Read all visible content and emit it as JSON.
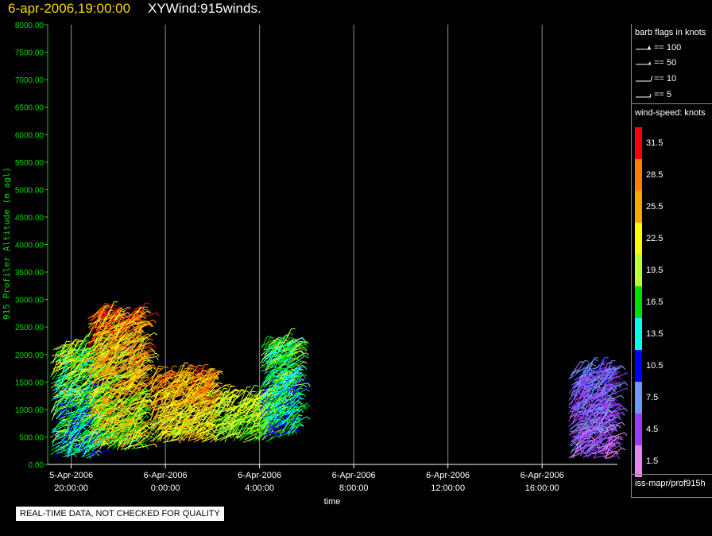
{
  "header": {
    "date_time": "6-apr-2006,19:00:00",
    "product": "XYWind:915winds."
  },
  "chart_data": {
    "type": "scatter",
    "title": "6-apr-2006,19:00:00 XYWind:915winds.",
    "xlabel": "time",
    "ylabel": "915 Profiler Altitude (m agl)",
    "ylim": [
      0,
      8000
    ],
    "y_ticks": [
      "0.00",
      "500.00",
      "1000.00",
      "1500.00",
      "2000.00",
      "2500.00",
      "3000.00",
      "3500.00",
      "4000.00",
      "4500.00",
      "5000.00",
      "5500.00",
      "6000.00",
      "6500.00",
      "7000.00",
      "7500.00",
      "8000.00"
    ],
    "y_tick_values": [
      0,
      500,
      1000,
      1500,
      2000,
      2500,
      3000,
      3500,
      4000,
      4500,
      5000,
      5500,
      6000,
      6500,
      7000,
      7500,
      8000
    ],
    "xlim_hours": [
      -1.0,
      23.2
    ],
    "x_ticks": [
      {
        "hour": 0,
        "date": "5-Apr-2006",
        "time": "20:00:00"
      },
      {
        "hour": 4,
        "date": "6-Apr-2006",
        "time": "0:00:00"
      },
      {
        "hour": 8,
        "date": "6-Apr-2006",
        "time": "4:00:00"
      },
      {
        "hour": 12,
        "date": "6-Apr-2006",
        "time": "8:00:00"
      },
      {
        "hour": 16,
        "date": "6-Apr-2006",
        "time": "12:00:00"
      },
      {
        "hour": 20,
        "date": "6-Apr-2006",
        "time": "16:00:00"
      }
    ],
    "grid": "vertical",
    "barb_clusters": [
      {
        "hour_start": -0.9,
        "hour_end": 0.9,
        "alt_min": 100,
        "alt_max": 2100,
        "speed_min": 8,
        "speed_max": 24
      },
      {
        "hour_start": 0.7,
        "hour_end": 2.9,
        "alt_min": 250,
        "alt_max": 2700,
        "speed_min": 14,
        "speed_max": 33
      },
      {
        "hour_start": 3.3,
        "hour_end": 6.0,
        "alt_min": 400,
        "alt_max": 1600,
        "speed_min": 17,
        "speed_max": 31
      },
      {
        "hour_start": 6.0,
        "hour_end": 8.5,
        "alt_min": 400,
        "alt_max": 1200,
        "speed_min": 15,
        "speed_max": 24
      },
      {
        "hour_start": 8.0,
        "hour_end": 9.4,
        "alt_min": 500,
        "alt_max": 2200,
        "speed_min": 9,
        "speed_max": 22
      },
      {
        "hour_start": 21.1,
        "hour_end": 22.9,
        "alt_min": 100,
        "alt_max": 1700,
        "speed_min": 1,
        "speed_max": 10
      }
    ]
  },
  "legend": {
    "barb_title": "barb flags in knots",
    "barb_entries": [
      "== 100",
      "== 50",
      "== 10",
      "== 5"
    ],
    "speed_title": "wind-speed: knots",
    "speed_labels": [
      "31.5",
      "28.5",
      "25.5",
      "22.5",
      "19.5",
      "16.5",
      "13.5",
      "10.5",
      "7.5",
      "4.5",
      "1.5"
    ],
    "speed_colors": [
      "#ff0000",
      "#ff7f00",
      "#ffa500",
      "#ffff00",
      "#b8ff3a",
      "#00dd00",
      "#00ffee",
      "#0000ff",
      "#6f95ff",
      "#9a3cff",
      "#ee82ee"
    ],
    "source": "iss-mapr/prof915h"
  },
  "disclaimer": "REAL-TIME DATA, NOT CHECKED FOR QUALITY",
  "colors": {
    "axis": "#00dd00",
    "frame": "#ffffff",
    "grid": "#909090",
    "title_date": "#ffd700"
  }
}
